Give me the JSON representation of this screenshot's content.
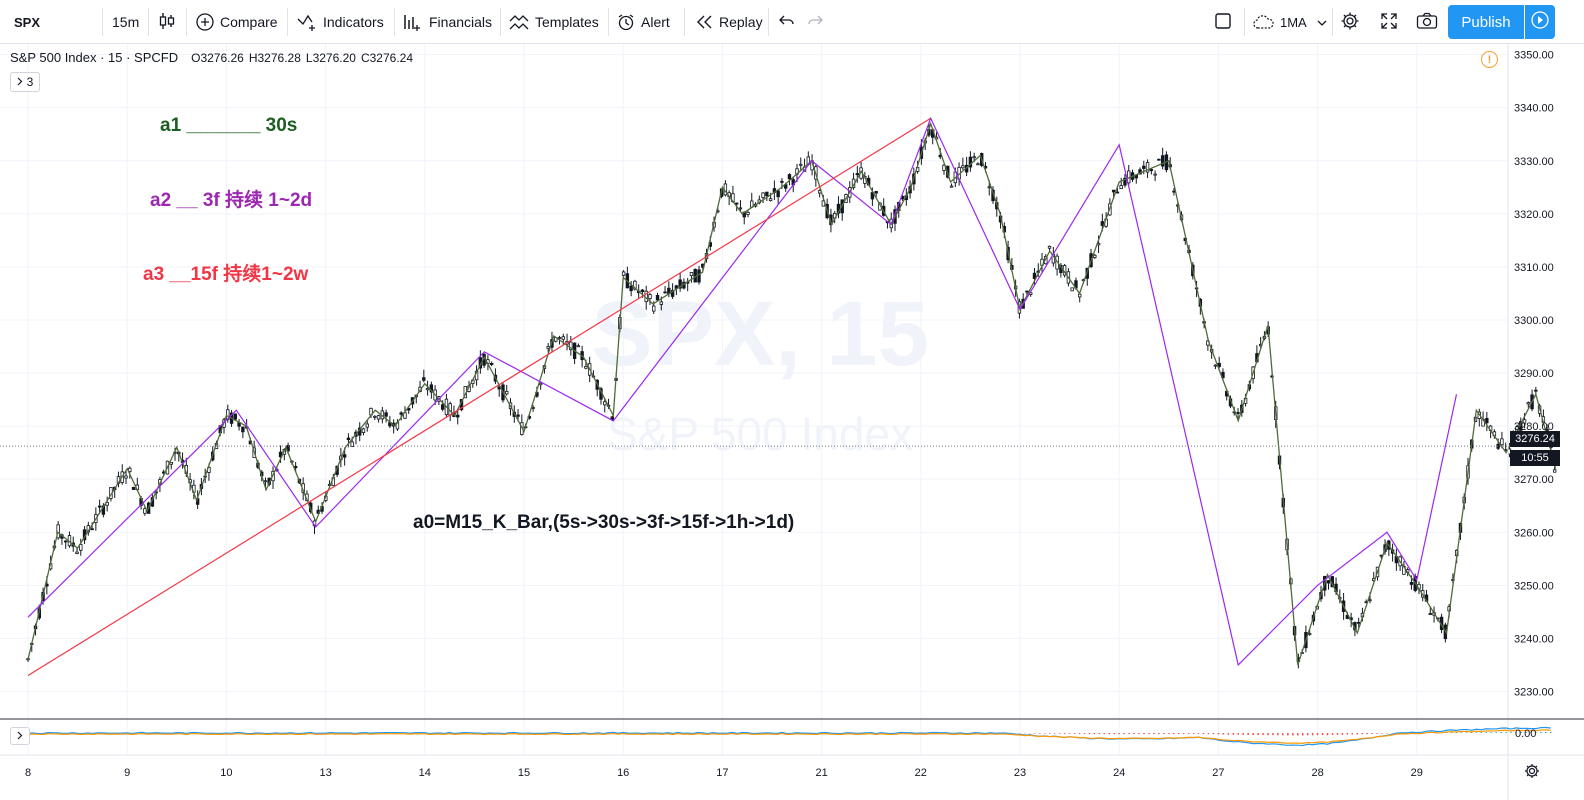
{
  "toolbar": {
    "symbol": "SPX",
    "interval": "15m",
    "compare": "Compare",
    "indicators": "Indicators",
    "financials": "Financials",
    "templates": "Templates",
    "alert": "Alert",
    "replay": "Replay",
    "layout_name": "1MA",
    "publish": "Publish"
  },
  "legend": {
    "title": "S&P 500 Index · 15 · SPCFD",
    "open": "O3276.26",
    "high": "H3276.28",
    "low": "L3276.20",
    "close": "C3276.24",
    "collapsed_count": "3"
  },
  "annotations": {
    "a1": "a1 _______ 30s",
    "a2": "a2 __ 3f 持续 1~2d",
    "a3": "a3 __15f 持续1~2w",
    "a0": "a0=M15_K_Bar,(5s->30s->3f->15f->1h->1d)"
  },
  "watermark": {
    "line1": "SPX, 15",
    "line2": "S&P 500 Index"
  },
  "price_scale": {
    "ticks": [
      "3350.00",
      "3340.00",
      "3330.00",
      "3320.00",
      "3310.00",
      "3300.00",
      "3290.00",
      "3280.00",
      "3270.00",
      "3260.00",
      "3250.00",
      "3240.00",
      "3230.00"
    ],
    "last_price": "3276.24",
    "countdown": "10:55",
    "osc_zero": "0.00"
  },
  "time_scale": {
    "labels": [
      "8",
      "9",
      "10",
      "13",
      "14",
      "15",
      "16",
      "17",
      "21",
      "22",
      "23",
      "24",
      "27",
      "28",
      "29"
    ]
  },
  "colors": {
    "a1_color": "#1b5e20",
    "a2_color": "#9c27b0",
    "a3_color": "#f23645",
    "candle": "#131722",
    "green_line": "#4f6b3a",
    "purple_line": "#9c27f0",
    "red_line": "#f23645",
    "macd_blue": "#2196f3",
    "macd_orange": "#ff9800"
  },
  "chart_data": {
    "type": "line",
    "title": "S&P 500 Index · 15 · SPCFD",
    "y_range": [
      3225,
      3352
    ],
    "x_labels": [
      "8",
      "9",
      "10",
      "13",
      "14",
      "15",
      "16",
      "17",
      "21",
      "22",
      "23",
      "24",
      "27",
      "28",
      "29"
    ],
    "series": [
      {
        "color": "#4f6b3a",
        "values": [
          [
            0,
            3236
          ],
          [
            0.3,
            3260
          ],
          [
            0.5,
            3257
          ],
          [
            0.8,
            3266
          ],
          [
            1.0,
            3272
          ],
          [
            1.2,
            3264
          ],
          [
            1.5,
            3276
          ],
          [
            1.7,
            3266
          ],
          [
            2.0,
            3282
          ],
          [
            2.2,
            3280
          ],
          [
            2.4,
            3268
          ],
          [
            2.6,
            3276
          ],
          [
            2.9,
            3262
          ],
          [
            3.2,
            3276
          ],
          [
            3.5,
            3283
          ],
          [
            3.7,
            3280
          ],
          [
            4.0,
            3288
          ],
          [
            4.3,
            3282
          ],
          [
            4.6,
            3293
          ],
          [
            5.0,
            3279
          ],
          [
            5.3,
            3297
          ],
          [
            5.6,
            3293
          ],
          [
            5.9,
            3282
          ],
          [
            6.0,
            3308
          ],
          [
            6.3,
            3303
          ],
          [
            6.8,
            3309
          ],
          [
            7.0,
            3325
          ],
          [
            7.2,
            3320
          ],
          [
            7.6,
            3325
          ],
          [
            7.9,
            3330
          ],
          [
            8.1,
            3318
          ],
          [
            8.4,
            3328
          ],
          [
            8.7,
            3318
          ],
          [
            8.9,
            3325
          ],
          [
            9.1,
            3337
          ],
          [
            9.3,
            3326
          ],
          [
            9.6,
            3331
          ],
          [
            9.8,
            3320
          ],
          [
            10.0,
            3302
          ],
          [
            10.3,
            3313
          ],
          [
            10.6,
            3305
          ],
          [
            11.0,
            3326
          ],
          [
            11.5,
            3330
          ],
          [
            11.9,
            3296
          ],
          [
            12.2,
            3281
          ],
          [
            12.5,
            3299
          ],
          [
            12.8,
            3235
          ],
          [
            13.1,
            3252
          ],
          [
            13.4,
            3241
          ],
          [
            13.7,
            3258
          ],
          [
            14.0,
            3250
          ],
          [
            14.3,
            3241
          ],
          [
            14.6,
            3283
          ],
          [
            14.9,
            3275
          ],
          [
            15.2,
            3286
          ],
          [
            15.4,
            3272
          ]
        ]
      },
      {
        "color": "#9c27f0",
        "values": [
          [
            0,
            3244
          ],
          [
            2.1,
            3283
          ],
          [
            2.9,
            3261
          ],
          [
            4.6,
            3294
          ],
          [
            5.9,
            3281
          ],
          [
            7.9,
            3330
          ],
          [
            8.7,
            3318
          ],
          [
            9.1,
            3338
          ],
          [
            10.0,
            3302
          ],
          [
            11.0,
            3333
          ],
          [
            12.2,
            3235
          ],
          [
            13.0,
            3250
          ],
          [
            13.7,
            3260
          ],
          [
            14.0,
            3251
          ],
          [
            14.4,
            3286
          ]
        ]
      },
      {
        "color": "#f23645",
        "values": [
          [
            0,
            3233
          ],
          [
            9.1,
            3338
          ]
        ]
      }
    ]
  }
}
